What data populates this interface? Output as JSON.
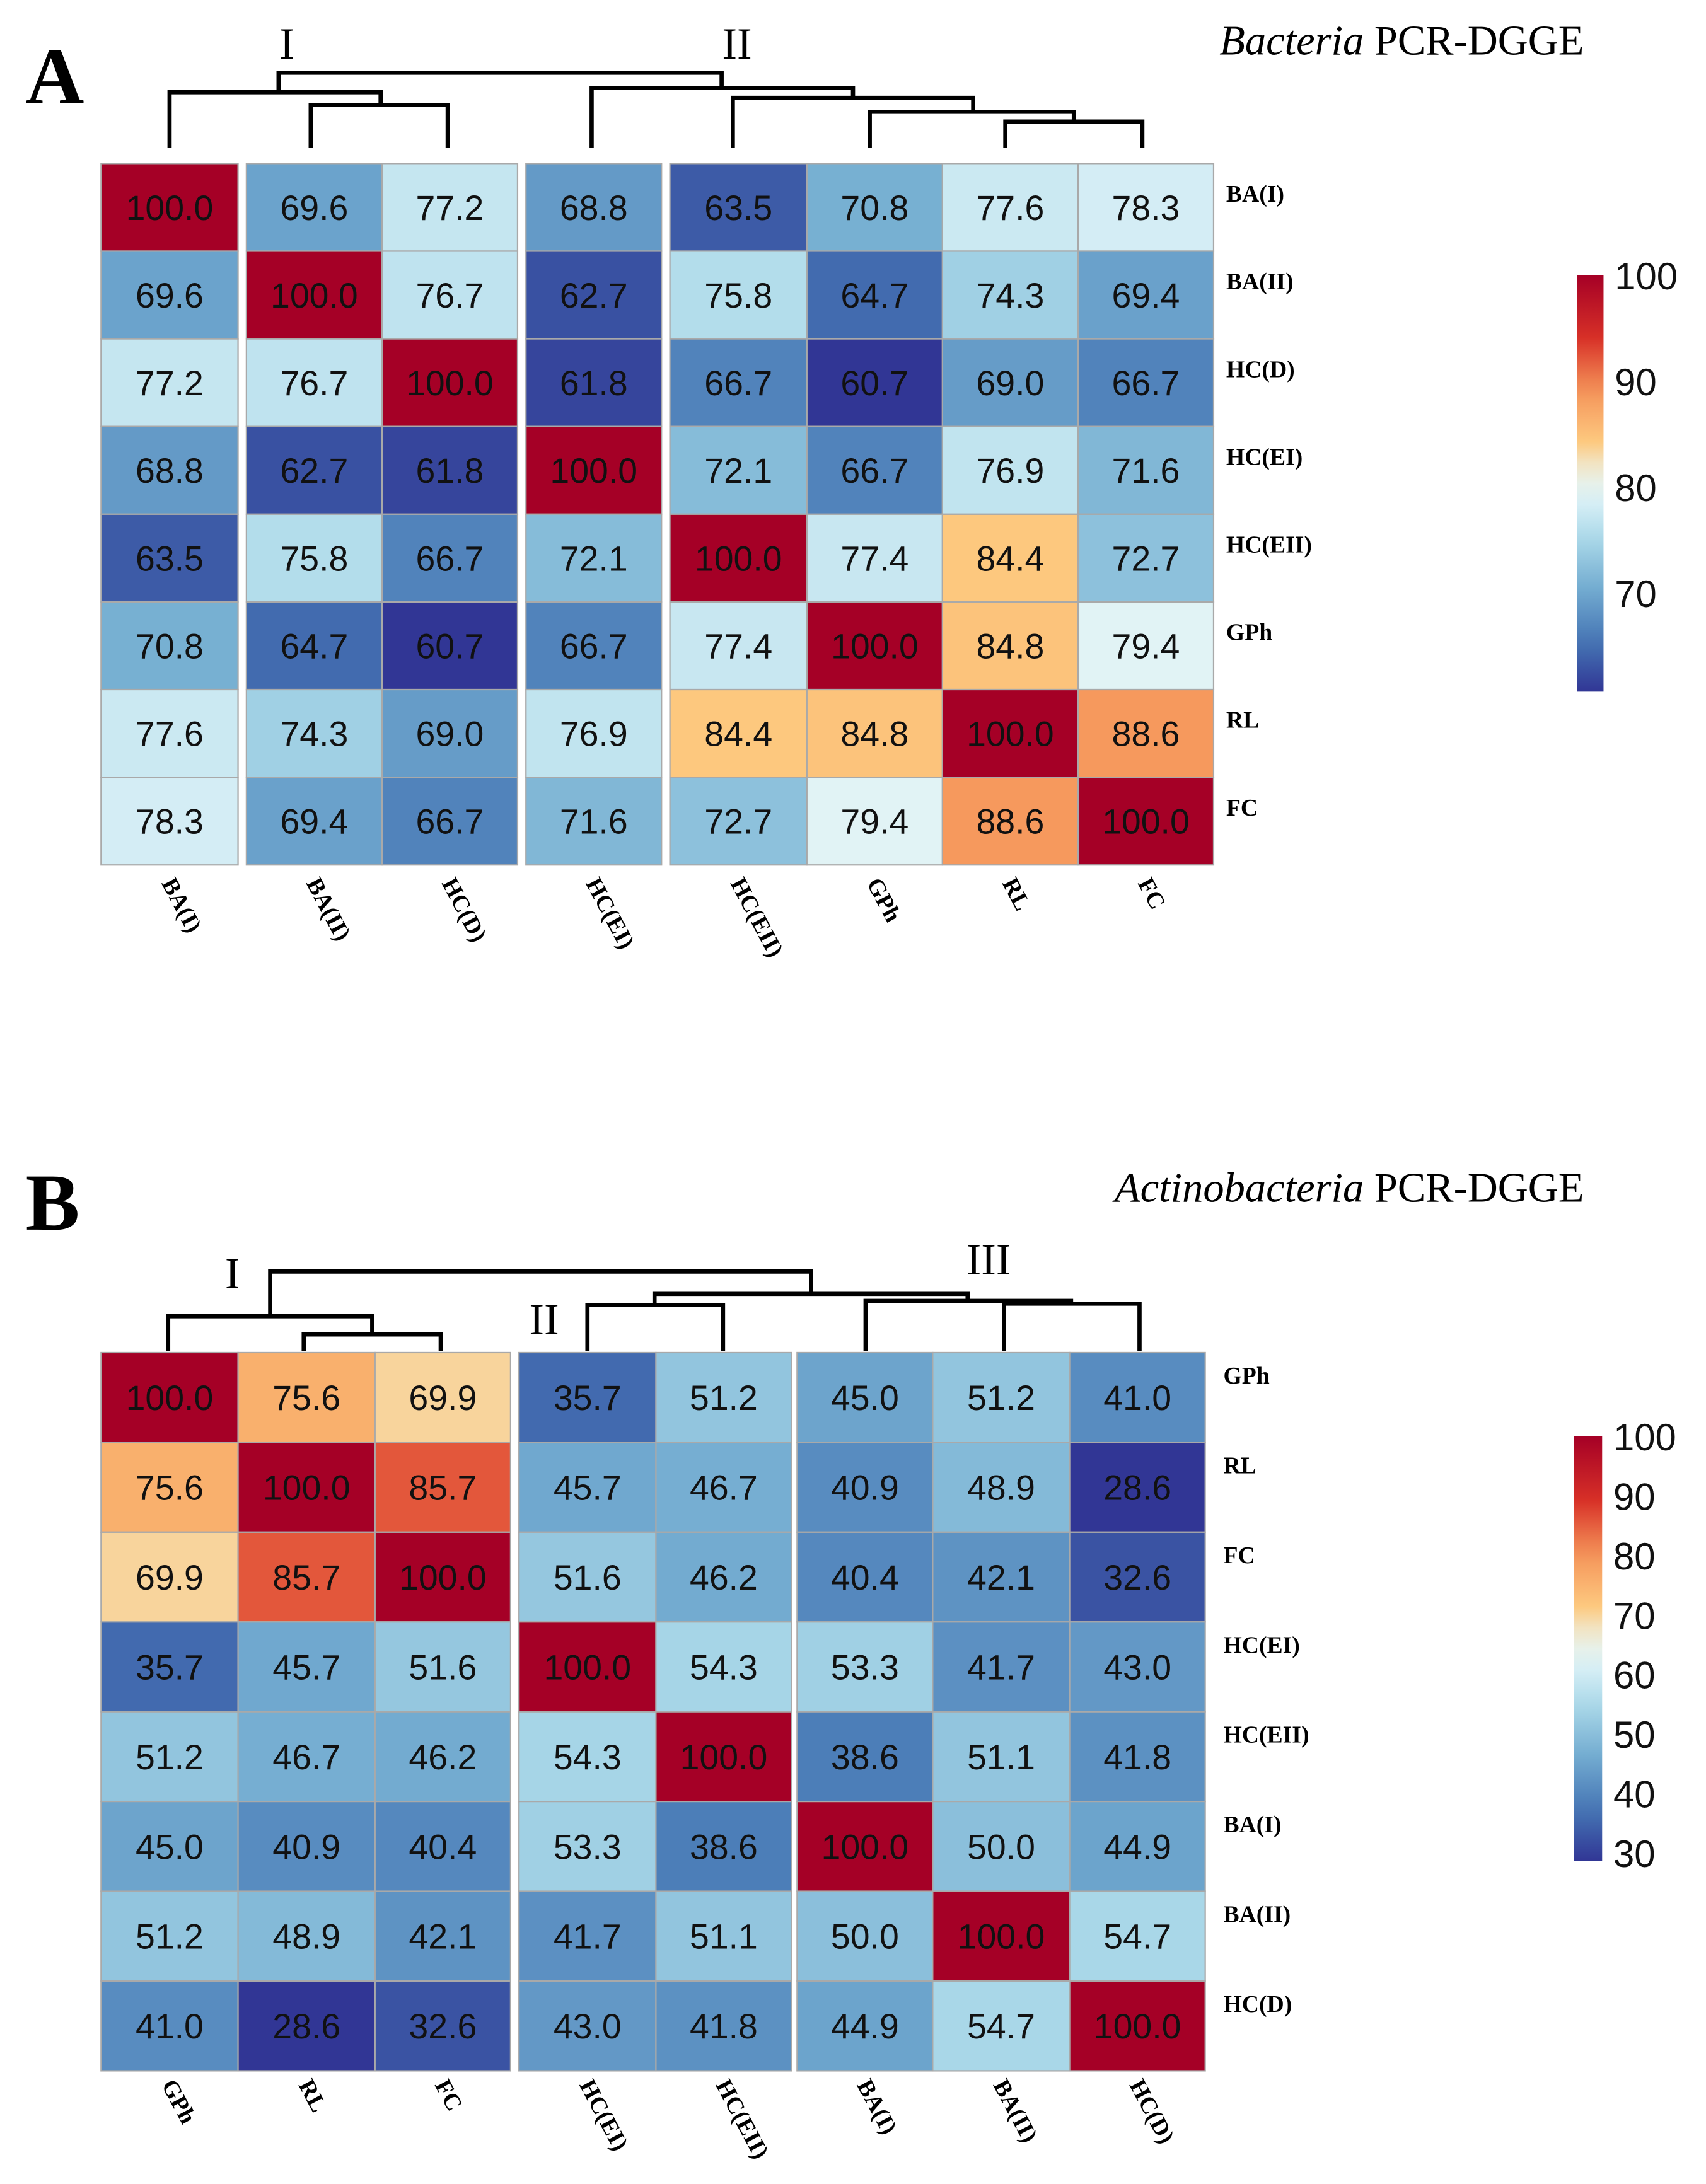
{
  "chart_data": [
    {
      "type": "heatmap",
      "panel_label": "A",
      "title_italic": "Bacteria",
      "title_rest": " PCR-DGGE",
      "cluster_labels": [
        "I",
        "II"
      ],
      "rows": [
        "BA(I)",
        "BA(II)",
        "HC(D)",
        "HC(EI)",
        "HC(EII)",
        "GPh",
        "RL",
        "FC"
      ],
      "columns": [
        "BA(I)",
        "BA(II)",
        "HC(D)",
        "HC(EI)",
        "HC(EII)",
        "GPh",
        "RL",
        "FC"
      ],
      "values": [
        [
          100.0,
          69.6,
          77.2,
          68.8,
          63.5,
          70.8,
          77.6,
          78.3
        ],
        [
          69.6,
          100.0,
          76.7,
          62.7,
          75.8,
          64.7,
          74.3,
          69.4
        ],
        [
          77.2,
          76.7,
          100.0,
          61.8,
          66.7,
          60.7,
          69.0,
          66.7
        ],
        [
          68.8,
          62.7,
          61.8,
          100.0,
          72.1,
          66.7,
          76.9,
          71.6
        ],
        [
          63.5,
          75.8,
          66.7,
          72.1,
          100.0,
          77.4,
          84.4,
          72.7
        ],
        [
          70.8,
          64.7,
          60.7,
          66.7,
          77.4,
          100.0,
          84.8,
          79.4
        ],
        [
          77.6,
          74.3,
          69.0,
          76.9,
          84.4,
          84.8,
          100.0,
          88.6
        ],
        [
          78.3,
          69.4,
          66.7,
          71.6,
          72.7,
          79.4,
          88.6,
          100.0
        ]
      ],
      "colorbar": {
        "min": 60.7,
        "max": 100,
        "ticks": [
          "100",
          "90",
          "80",
          "70"
        ],
        "tick_values": [
          100,
          90,
          80,
          70
        ]
      },
      "colors": {
        "low": "#313695",
        "mid": "#e0f3f8",
        "high": "#a50026"
      }
    },
    {
      "type": "heatmap",
      "panel_label": "B",
      "title_italic": "Actinobacteria",
      "title_rest": " PCR-DGGE",
      "cluster_labels": [
        "I",
        "II",
        "III"
      ],
      "rows": [
        "GPh",
        "RL",
        "FC",
        "HC(EI)",
        "HC(EII)",
        "BA(I)",
        "BA(II)",
        "HC(D)"
      ],
      "columns": [
        "GPh",
        "RL",
        "FC",
        "HC(EI)",
        "HC(EII)",
        "BA(I)",
        "BA(II)",
        "HC(D)"
      ],
      "values": [
        [
          100.0,
          75.6,
          69.9,
          35.7,
          51.2,
          45.0,
          51.2,
          41.0
        ],
        [
          75.6,
          100.0,
          85.7,
          45.7,
          46.7,
          40.9,
          48.9,
          28.6
        ],
        [
          69.9,
          85.7,
          100.0,
          51.6,
          46.2,
          40.4,
          42.1,
          32.6
        ],
        [
          35.7,
          45.7,
          51.6,
          100.0,
          54.3,
          53.3,
          41.7,
          43.0
        ],
        [
          51.2,
          46.7,
          46.2,
          54.3,
          100.0,
          38.6,
          51.1,
          41.8
        ],
        [
          45.0,
          40.9,
          40.4,
          53.3,
          38.6,
          100.0,
          50.0,
          44.9
        ],
        [
          51.2,
          48.9,
          42.1,
          41.7,
          51.1,
          50.0,
          100.0,
          54.7
        ],
        [
          41.0,
          28.6,
          32.6,
          43.0,
          41.8,
          44.9,
          54.7,
          100.0
        ]
      ],
      "colorbar": {
        "min": 28.6,
        "max": 100,
        "ticks": [
          "100",
          "90",
          "80",
          "70",
          "60",
          "50",
          "40",
          "30"
        ],
        "tick_values": [
          100,
          90,
          80,
          70,
          60,
          50,
          40,
          30
        ]
      },
      "colors": {
        "low": "#313695",
        "mid": "#e0f3f8",
        "high": "#a50026"
      }
    }
  ]
}
